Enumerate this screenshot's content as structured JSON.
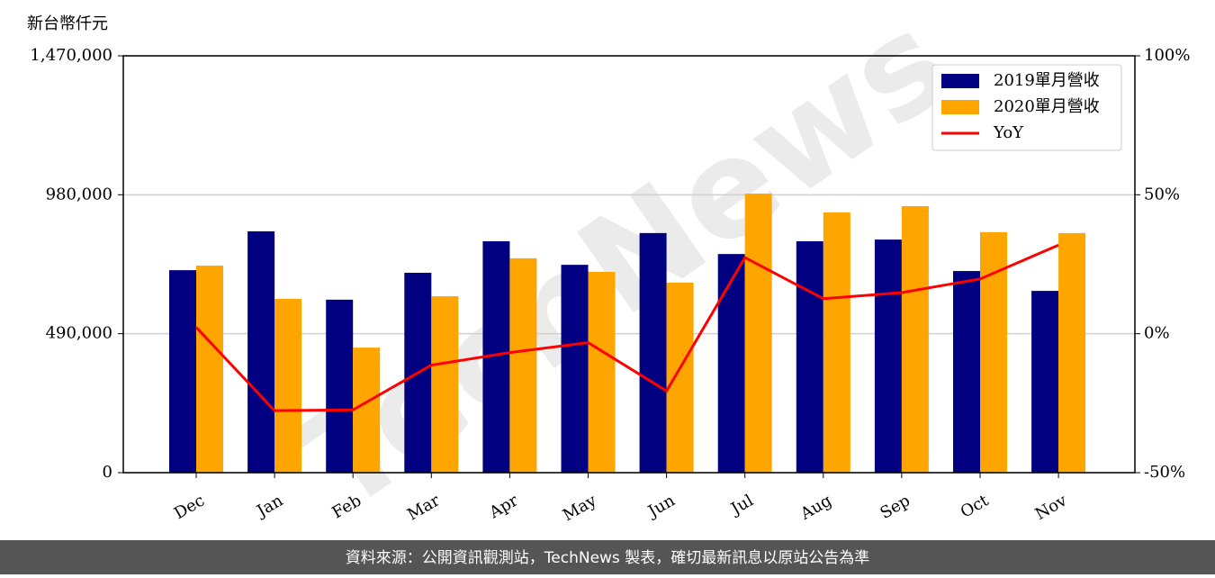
{
  "chart_data": {
    "type": "bar",
    "y_label": "新台幣仟元",
    "watermark": "TechNews",
    "footer": "資料來源：公開資訊觀測站，TechNews 製表，確切最新訊息以原站公告為準",
    "categories": [
      "Dec",
      "Jan",
      "Feb",
      "Mar",
      "Apr",
      "May",
      "Jun",
      "Jul",
      "Aug",
      "Sep",
      "Oct",
      "Nov"
    ],
    "series": [
      {
        "name": "2019單月營收",
        "color": "#000080",
        "type": "bar",
        "values": [
          714000,
          851000,
          610000,
          705000,
          816000,
          733000,
          845000,
          771000,
          816000,
          822000,
          711000,
          641000
        ]
      },
      {
        "name": "2020單月營收",
        "color": "#ffa500",
        "type": "bar",
        "values": [
          730000,
          613000,
          441000,
          622000,
          756000,
          708000,
          670000,
          984000,
          918000,
          940000,
          848000,
          845000
        ]
      },
      {
        "name": "YoY",
        "color": "#ff0000",
        "type": "line",
        "axis": "y2",
        "values": [
          2.3,
          -27.7,
          -27.4,
          -11.3,
          -6.8,
          -3.2,
          -20.6,
          27.4,
          12.6,
          14.8,
          19.7,
          31.9
        ]
      }
    ],
    "ylim": [
      0,
      1470000
    ],
    "yticks": [
      0,
      {
        "value": 490000,
        "label": "490,000"
      },
      {
        "value": 980000,
        "label": "980,000"
      },
      {
        "value": 1470000,
        "label": "1,470,000"
      }
    ],
    "y2lim": [
      -50,
      100
    ],
    "y2ticks": [
      {
        "value": -50,
        "label": "-50%"
      },
      {
        "value": 0,
        "label": "0%"
      },
      {
        "value": 50,
        "label": "50%"
      },
      {
        "value": 100,
        "label": "100%"
      }
    ],
    "grid": true,
    "legend": "upper right"
  }
}
